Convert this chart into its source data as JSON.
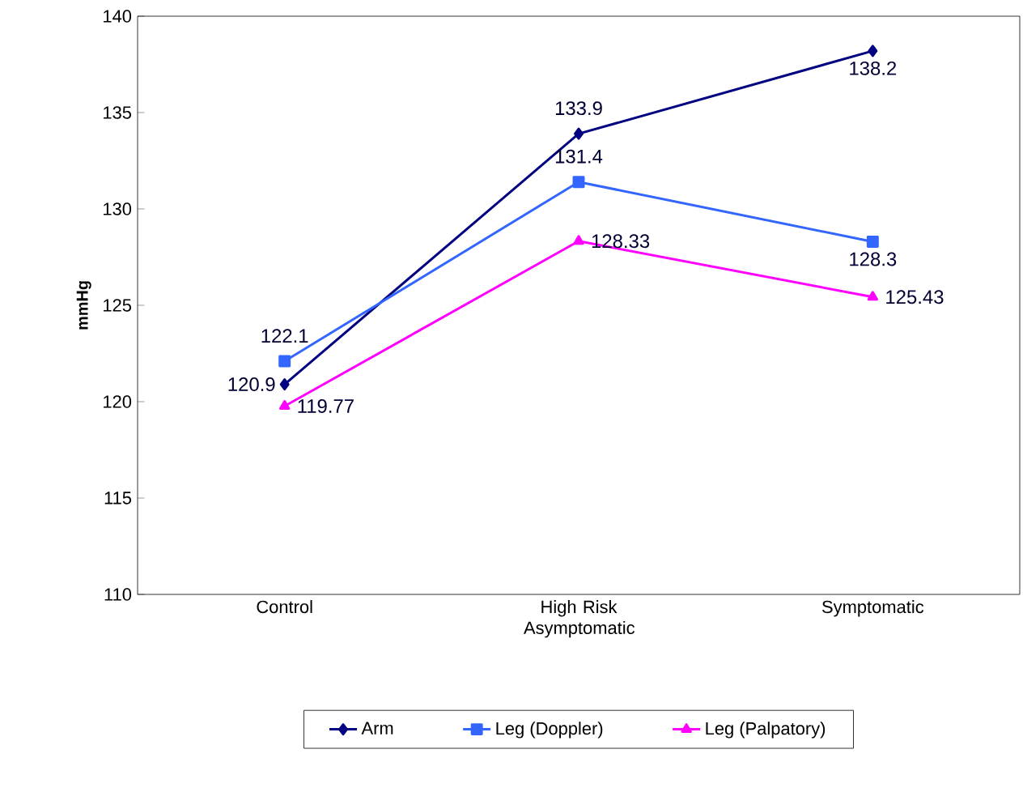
{
  "chart_data": {
    "type": "line",
    "ylabel": "mmHg",
    "categories": [
      "Control",
      "High Risk Asymptomatic",
      "Symptomatic"
    ],
    "series": [
      {
        "name": "Arm",
        "color": "#000080",
        "marker": "diamond",
        "values": [
          120.9,
          133.9,
          138.2
        ]
      },
      {
        "name": "Leg (Doppler)",
        "color": "#3366ff",
        "marker": "square",
        "values": [
          122.1,
          131.4,
          128.3
        ]
      },
      {
        "name": "Leg (Palpatory)",
        "color": "#ff00ff",
        "marker": "triangle",
        "values": [
          119.77,
          128.33,
          125.43
        ]
      }
    ],
    "ylim": [
      110,
      140
    ],
    "yticks": [
      110,
      115,
      120,
      125,
      130,
      135,
      140
    ],
    "grid": false,
    "legend": "bottom",
    "data_labels": true
  }
}
